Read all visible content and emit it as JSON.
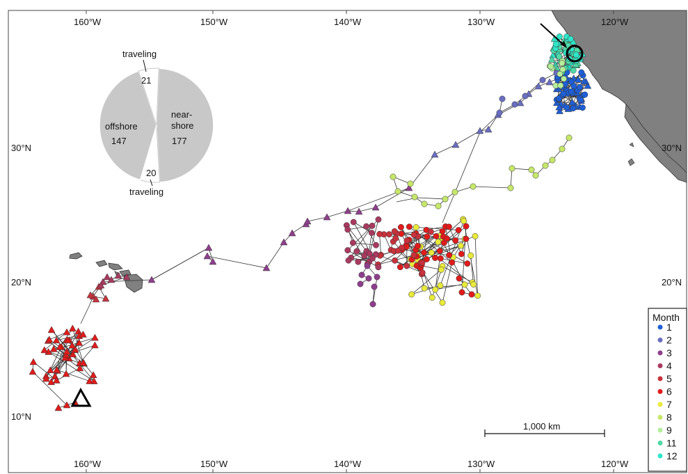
{
  "axes": {
    "top_labels": [
      "160°W",
      "150°W",
      "140°W",
      "130°W",
      "120°W"
    ],
    "bottom_labels": [
      "160°W",
      "150°W",
      "140°W",
      "130°W",
      "120°W"
    ],
    "left_labels": [
      "30°N",
      "20°N",
      "10°N"
    ],
    "right_labels": [
      "30°N",
      "20°N"
    ]
  },
  "pie": {
    "slices": [
      {
        "label": "near-\nshore",
        "value": 177
      },
      {
        "label": "traveling",
        "value": 20
      },
      {
        "label": "offshore",
        "value": 147
      },
      {
        "label": "traveling",
        "value": 21
      }
    ],
    "near_label_line1": "near-",
    "near_label_line2": "shore",
    "near_value": "177",
    "offshore_label": "offshore",
    "offshore_value": "147",
    "travel_top_label": "traveling",
    "travel_top_value": "21",
    "travel_bottom_label": "traveling",
    "travel_bottom_value": "20"
  },
  "legend": {
    "title": "Month",
    "items": [
      {
        "label": "1",
        "color": "#1f5fd6"
      },
      {
        "label": "2",
        "color": "#6a6ec0"
      },
      {
        "label": "3",
        "color": "#8e3f8c"
      },
      {
        "label": "4",
        "color": "#a93a5f"
      },
      {
        "label": "5",
        "color": "#c8323c"
      },
      {
        "label": "6",
        "color": "#e11b1b"
      },
      {
        "label": "7",
        "color": "#e9ea3a"
      },
      {
        "label": "8",
        "color": "#c6e86a"
      },
      {
        "label": "9",
        "color": "#b5ee9a"
      },
      {
        "label": "11",
        "color": "#4fd9a6"
      },
      {
        "label": "12",
        "color": "#2ee6c8"
      }
    ]
  },
  "scale_bar": {
    "label": "1,000 km"
  },
  "colors": {
    "land": "#808080",
    "track": "#333333",
    "pie": "#c8c8c8"
  }
}
